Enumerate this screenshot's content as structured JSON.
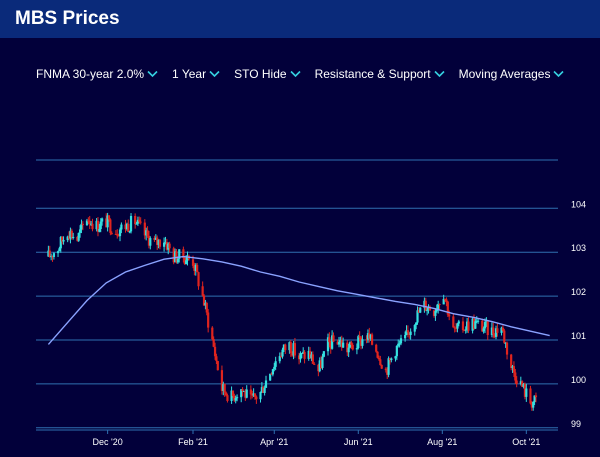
{
  "header": {
    "title": "MBS Prices"
  },
  "toolbar": {
    "items": [
      {
        "label": "FNMA 30-year 2.0%"
      },
      {
        "label": "1 Year"
      },
      {
        "label": "STO Hide"
      },
      {
        "label": "Resistance & Support"
      },
      {
        "label": "Moving Averages"
      }
    ]
  },
  "colors": {
    "background": "#02003a",
    "header": "#0a2a7a",
    "up_candle": "#35e0e0",
    "down_candle": "#e0241e",
    "moving_average": "#8aa2ff",
    "gridline": "#2f6fb0"
  },
  "chart_data": {
    "type": "candlestick",
    "x_ticks": [
      "Dec '20",
      "Feb '21",
      "Apr '21",
      "Jun '21",
      "Aug '21",
      "Oct '21"
    ],
    "y_ticks": [
      99,
      100,
      101,
      102,
      103,
      104
    ],
    "ylim": [
      98.95,
      105.1
    ],
    "grid": "horizontal",
    "close_series": {
      "name": "",
      "x": [
        "2020-10-19",
        "2020-10-26",
        "2020-11-02",
        "2020-11-09",
        "2020-11-16",
        "2020-11-23",
        "2020-11-30",
        "2020-12-07",
        "2020-12-14",
        "2020-12-21",
        "2020-12-28",
        "2021-01-04",
        "2021-01-11",
        "2021-01-18",
        "2021-01-25",
        "2021-02-01",
        "2021-02-08",
        "2021-02-15",
        "2021-02-22",
        "2021-03-01",
        "2021-03-08",
        "2021-03-15",
        "2021-03-22",
        "2021-03-29",
        "2021-04-05",
        "2021-04-12",
        "2021-04-19",
        "2021-04-26",
        "2021-05-03",
        "2021-05-10",
        "2021-05-17",
        "2021-05-24",
        "2021-05-31",
        "2021-06-07",
        "2021-06-14",
        "2021-06-21",
        "2021-06-28",
        "2021-07-05",
        "2021-07-12",
        "2021-07-19",
        "2021-07-26",
        "2021-08-02",
        "2021-08-09",
        "2021-08-16",
        "2021-08-23",
        "2021-08-30",
        "2021-09-06",
        "2021-09-13",
        "2021-09-20",
        "2021-09-27",
        "2021-10-04",
        "2021-10-11"
      ],
      "values": [
        102.9,
        103.1,
        103.5,
        103.3,
        103.8,
        103.6,
        103.7,
        103.5,
        103.6,
        103.7,
        103.4,
        103.2,
        103.3,
        102.9,
        102.9,
        102.8,
        102.0,
        101.0,
        99.9,
        99.7,
        99.9,
        99.6,
        99.8,
        100.3,
        100.7,
        100.9,
        100.6,
        100.7,
        100.3,
        100.9,
        101.0,
        100.8,
        100.9,
        101.1,
        100.8,
        100.3,
        100.8,
        101.0,
        101.5,
        101.8,
        101.7,
        102.1,
        101.2,
        101.3,
        101.4,
        101.3,
        101.2,
        101.3,
        100.4,
        100.0,
        99.6,
        99.6
      ]
    },
    "moving_average": {
      "name": "",
      "x": [
        "2020-10-19",
        "2020-11-02",
        "2020-11-16",
        "2020-11-30",
        "2020-12-14",
        "2020-12-28",
        "2021-01-11",
        "2021-01-25",
        "2021-02-08",
        "2021-02-22",
        "2021-03-08",
        "2021-03-22",
        "2021-04-05",
        "2021-04-19",
        "2021-05-03",
        "2021-05-17",
        "2021-05-31",
        "2021-06-14",
        "2021-06-28",
        "2021-07-12",
        "2021-07-26",
        "2021-08-09",
        "2021-08-23",
        "2021-09-06",
        "2021-09-20",
        "2021-10-04",
        "2021-10-18"
      ],
      "values": [
        100.9,
        101.4,
        101.9,
        102.3,
        102.55,
        102.7,
        102.84,
        102.9,
        102.85,
        102.78,
        102.68,
        102.55,
        102.45,
        102.32,
        102.22,
        102.12,
        102.04,
        101.96,
        101.88,
        101.81,
        101.72,
        101.6,
        101.52,
        101.42,
        101.3,
        101.2,
        101.1
      ]
    }
  }
}
